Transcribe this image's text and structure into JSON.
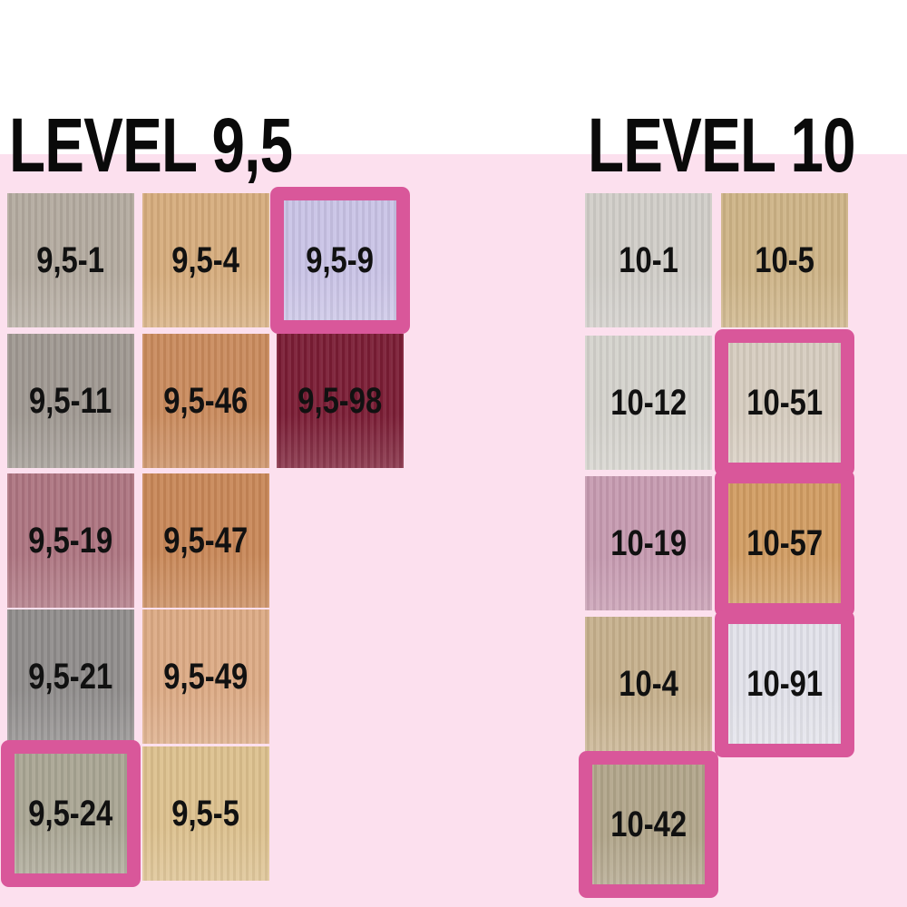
{
  "highlight_color": "#d9579a",
  "background_color": "#fce0ee",
  "sections": [
    {
      "title": "LEVEL 9,5",
      "swatches": [
        {
          "code": "9,5-1",
          "color": "#b3aa9f",
          "highlighted": false
        },
        {
          "code": "9,5-4",
          "color": "#d6ac7c",
          "highlighted": false
        },
        {
          "code": "9,5-9",
          "color": "#c9c3e6",
          "highlighted": true
        },
        {
          "code": "9,5-11",
          "color": "#9f9891",
          "highlighted": false
        },
        {
          "code": "9,5-46",
          "color": "#c98a5c",
          "highlighted": false
        },
        {
          "code": "9,5-98",
          "color": "#7a1c34",
          "highlighted": false
        },
        {
          "code": "9,5-19",
          "color": "#ad7480",
          "highlighted": false
        },
        {
          "code": "9,5-47",
          "color": "#c88757",
          "highlighted": false
        },
        {
          "code": "9,5-21",
          "color": "#8f8c8b",
          "highlighted": false
        },
        {
          "code": "9,5-49",
          "color": "#dcaa84",
          "highlighted": false
        },
        {
          "code": "9,5-24",
          "color": "#a9a593",
          "highlighted": true
        },
        {
          "code": "9,5-5",
          "color": "#dcc08d",
          "highlighted": false
        }
      ]
    },
    {
      "title": "LEVEL 10",
      "swatches": [
        {
          "code": "10-1",
          "color": "#d0cdc8",
          "highlighted": false
        },
        {
          "code": "10-5",
          "color": "#cdb386",
          "highlighted": false
        },
        {
          "code": "10-12",
          "color": "#d4d2cc",
          "highlighted": false
        },
        {
          "code": "10-51",
          "color": "#d6ccbf",
          "highlighted": true
        },
        {
          "code": "10-19",
          "color": "#c69ab0",
          "highlighted": false
        },
        {
          "code": "10-57",
          "color": "#d19c62",
          "highlighted": true
        },
        {
          "code": "10-4",
          "color": "#c6b08c",
          "highlighted": false
        },
        {
          "code": "10-91",
          "color": "#e2e2ea",
          "highlighted": true
        },
        {
          "code": "10-42",
          "color": "#b1a58a",
          "highlighted": true
        }
      ]
    }
  ]
}
